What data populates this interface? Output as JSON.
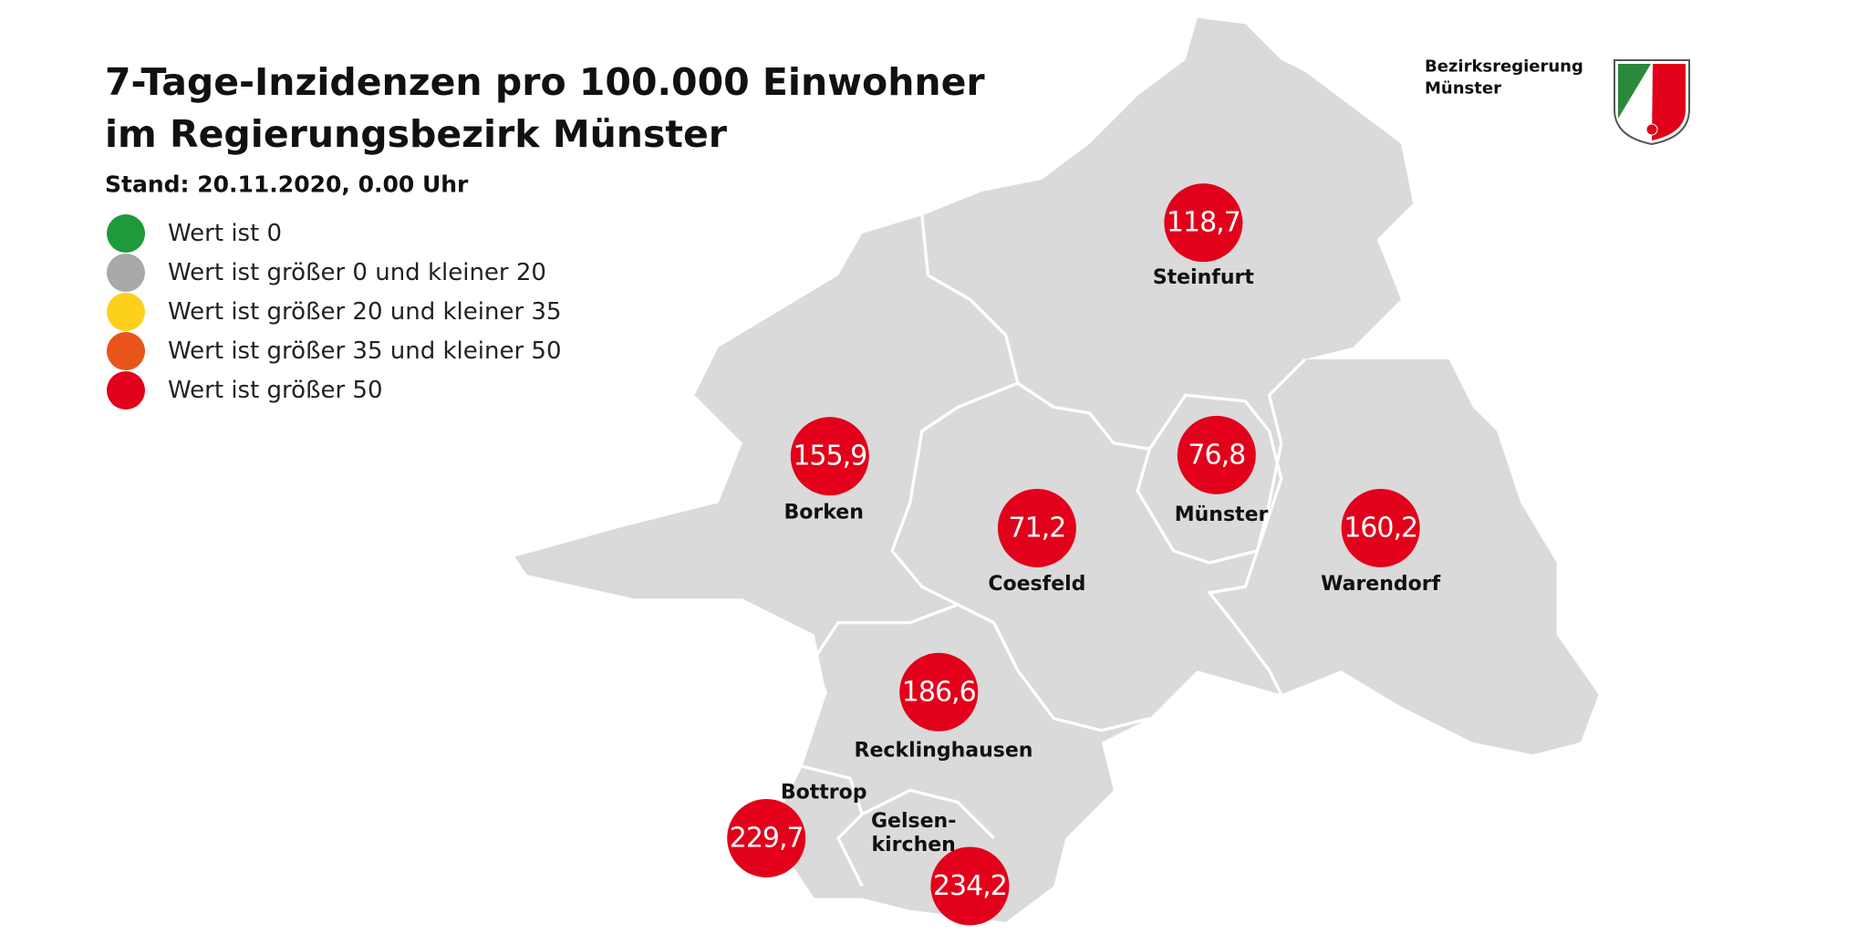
{
  "header": {
    "title_lines": [
      "7-Tage-Inzidenzen pro 100.000 Einwohner",
      "im Regierungsbezirk Münster"
    ],
    "stand": "Stand: 20.11.2020, 0.00 Uhr"
  },
  "logo": {
    "lines": [
      "Bezirksregierung",
      "Münster"
    ]
  },
  "legend": [
    {
      "label": "Wert ist 0",
      "color": "#1e9a3c"
    },
    {
      "label": "Wert ist größer 0 und kleiner 20",
      "color": "#a9a9a9"
    },
    {
      "label": "Wert ist größer 20 und kleiner 35",
      "color": "#fdd01c"
    },
    {
      "label": "Wert ist größer 35 und kleiner 50",
      "color": "#e8541a"
    },
    {
      "label": "Wert ist größer 50",
      "color": "#e2001a"
    }
  ],
  "regions": [
    {
      "name_lines": [
        "Steinfurt"
      ],
      "value": "118,7"
    },
    {
      "name_lines": [
        "Borken"
      ],
      "value": "155,9"
    },
    {
      "name_lines": [
        "Coesfeld"
      ],
      "value": "71,2"
    },
    {
      "name_lines": [
        "Münster"
      ],
      "value": "76,8"
    },
    {
      "name_lines": [
        "Warendorf"
      ],
      "value": "160,2"
    },
    {
      "name_lines": [
        "Recklinghausen"
      ],
      "value": "186,6"
    },
    {
      "name_lines": [
        "Bottrop"
      ],
      "value": "229,7"
    },
    {
      "name_lines": [
        "Gelsen-",
        "kirchen"
      ],
      "value": "234,2"
    }
  ]
}
